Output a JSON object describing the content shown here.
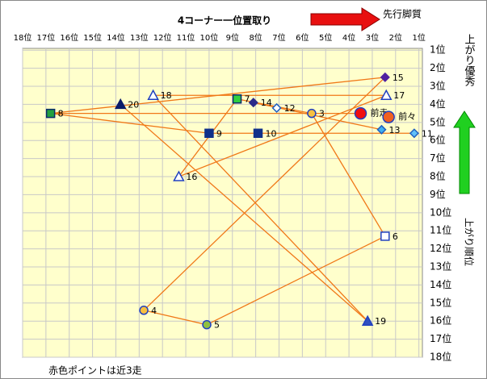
{
  "chart_data": {
    "type": "scatter",
    "title": "4コーナー一位置取り",
    "arrow_label": "先行脚質",
    "y_arrow_label": "上がり優秀",
    "y_axis_label": "上がり順位",
    "note": "赤色ポイントは近3走",
    "xlim": [
      18,
      0.85
    ],
    "ylim": [
      18,
      0.9
    ],
    "grid": true,
    "xticks": [
      {
        "value": 18,
        "label": "18位"
      },
      {
        "value": 17,
        "label": "17位"
      },
      {
        "value": 16,
        "label": "16位"
      },
      {
        "value": 15,
        "label": "15位"
      },
      {
        "value": 14,
        "label": "14位"
      },
      {
        "value": 13,
        "label": "13位"
      },
      {
        "value": 12,
        "label": "12位"
      },
      {
        "value": 11,
        "label": "11位"
      },
      {
        "value": 10,
        "label": "10位"
      },
      {
        "value": 9,
        "label": "9位"
      },
      {
        "value": 8,
        "label": "8位"
      },
      {
        "value": 7,
        "label": "7位"
      },
      {
        "value": 6,
        "label": "6位"
      },
      {
        "value": 5,
        "label": "5位"
      },
      {
        "value": 4,
        "label": "4位"
      },
      {
        "value": 3,
        "label": "3位"
      },
      {
        "value": 2,
        "label": "2位"
      },
      {
        "value": 1,
        "label": "1位"
      }
    ],
    "yticks": [
      {
        "value": 1,
        "label": "1位"
      },
      {
        "value": 2,
        "label": "2位"
      },
      {
        "value": 3,
        "label": "3位"
      },
      {
        "value": 4,
        "label": "4位"
      },
      {
        "value": 5,
        "label": "5位"
      },
      {
        "value": 6,
        "label": "6位"
      },
      {
        "value": 7,
        "label": "7位"
      },
      {
        "value": 8,
        "label": "8位"
      },
      {
        "value": 9,
        "label": "9位"
      },
      {
        "value": 10,
        "label": "10位"
      },
      {
        "value": 11,
        "label": "11位"
      },
      {
        "value": 12,
        "label": "12位"
      },
      {
        "value": 13,
        "label": "13位"
      },
      {
        "value": 14,
        "label": "14位"
      },
      {
        "value": 15,
        "label": "15位"
      },
      {
        "value": 16,
        "label": "16位"
      },
      {
        "value": 17,
        "label": "17位"
      },
      {
        "value": 18,
        "label": "18位"
      }
    ],
    "points": [
      {
        "label": "8",
        "x": 16.8,
        "y": 4.5,
        "shape": "square",
        "color": "#22a040",
        "stroke": "#0a2a6a"
      },
      {
        "label": "20",
        "x": 13.8,
        "y": 4,
        "shape": "triangle",
        "color": "#0a1a6a",
        "stroke": "#0a1a6a"
      },
      {
        "label": "18",
        "x": 12.4,
        "y": 3.5,
        "shape": "triangle",
        "color": "#ffffff",
        "stroke": "#2040c0"
      },
      {
        "label": "7",
        "x": 8.8,
        "y": 3.7,
        "shape": "square",
        "color": "#30d040",
        "stroke": "#0a2a6a"
      },
      {
        "label": "14",
        "x": 8.1,
        "y": 3.9,
        "shape": "diamond",
        "color": "#2a2a8a",
        "stroke": "#2a2a8a"
      },
      {
        "label": "12",
        "x": 7.1,
        "y": 4.2,
        "shape": "diamond",
        "color": "#ffffff",
        "stroke": "#2060c0"
      },
      {
        "label": "3",
        "x": 5.6,
        "y": 4.5,
        "shape": "circle",
        "color": "#f8c040",
        "stroke": "#2040c0"
      },
      {
        "label": "15",
        "x": 2.45,
        "y": 2.5,
        "shape": "diamond",
        "color": "#5020a0",
        "stroke": "#5020a0"
      },
      {
        "label": "17",
        "x": 2.4,
        "y": 3.5,
        "shape": "triangle",
        "color": "#ffffff",
        "stroke": "#2040c0"
      },
      {
        "label": "前走",
        "x": 3.5,
        "y": 4.5,
        "shape": "bigcircle",
        "color": "#f01010",
        "stroke": "#2040c0"
      },
      {
        "label": "前々",
        "x": 2.3,
        "y": 4.7,
        "shape": "bigcircle",
        "color": "#f06020",
        "stroke": "#2040c0"
      },
      {
        "label": "13",
        "x": 2.6,
        "y": 5.4,
        "shape": "diamond",
        "color": "#40b0f0",
        "stroke": "#2060c0"
      },
      {
        "label": "11",
        "x": 1.2,
        "y": 5.6,
        "shape": "diamond",
        "color": "#60c0f8",
        "stroke": "#2060c0"
      },
      {
        "label": "9",
        "x": 10,
        "y": 5.6,
        "shape": "square",
        "color": "#10308a",
        "stroke": "#10308a"
      },
      {
        "label": "10",
        "x": 7.9,
        "y": 5.6,
        "shape": "square",
        "color": "#10308a",
        "stroke": "#10308a"
      },
      {
        "label": "16",
        "x": 11.3,
        "y": 8,
        "shape": "triangle",
        "color": "#ffffff",
        "stroke": "#2040c0"
      },
      {
        "label": "6",
        "x": 2.45,
        "y": 11.3,
        "shape": "square",
        "color": "#ffffff",
        "stroke": "#2040c0"
      },
      {
        "label": "4",
        "x": 12.8,
        "y": 15.4,
        "shape": "circle",
        "color": "#f8c040",
        "stroke": "#2040c0"
      },
      {
        "label": "5",
        "x": 10.1,
        "y": 16.2,
        "shape": "circle",
        "color": "#90c040",
        "stroke": "#2040c0"
      },
      {
        "label": "19",
        "x": 3.2,
        "y": 16,
        "shape": "triangle",
        "color": "#3050c0",
        "stroke": "#2040c0"
      }
    ],
    "links": [
      [
        "8",
        "15"
      ],
      [
        "8",
        "9"
      ],
      [
        "9",
        "10"
      ],
      [
        "10",
        "11"
      ],
      [
        "18",
        "17"
      ],
      [
        "7",
        "16"
      ],
      [
        "16",
        "17"
      ],
      [
        "20",
        "19"
      ],
      [
        "18",
        "19"
      ],
      [
        "3",
        "6"
      ],
      [
        "6",
        "5"
      ],
      [
        "5",
        "4"
      ],
      [
        "4",
        "15"
      ],
      [
        "14",
        "13"
      ],
      [
        "7",
        "3"
      ],
      [
        "8",
        "前走"
      ]
    ]
  }
}
